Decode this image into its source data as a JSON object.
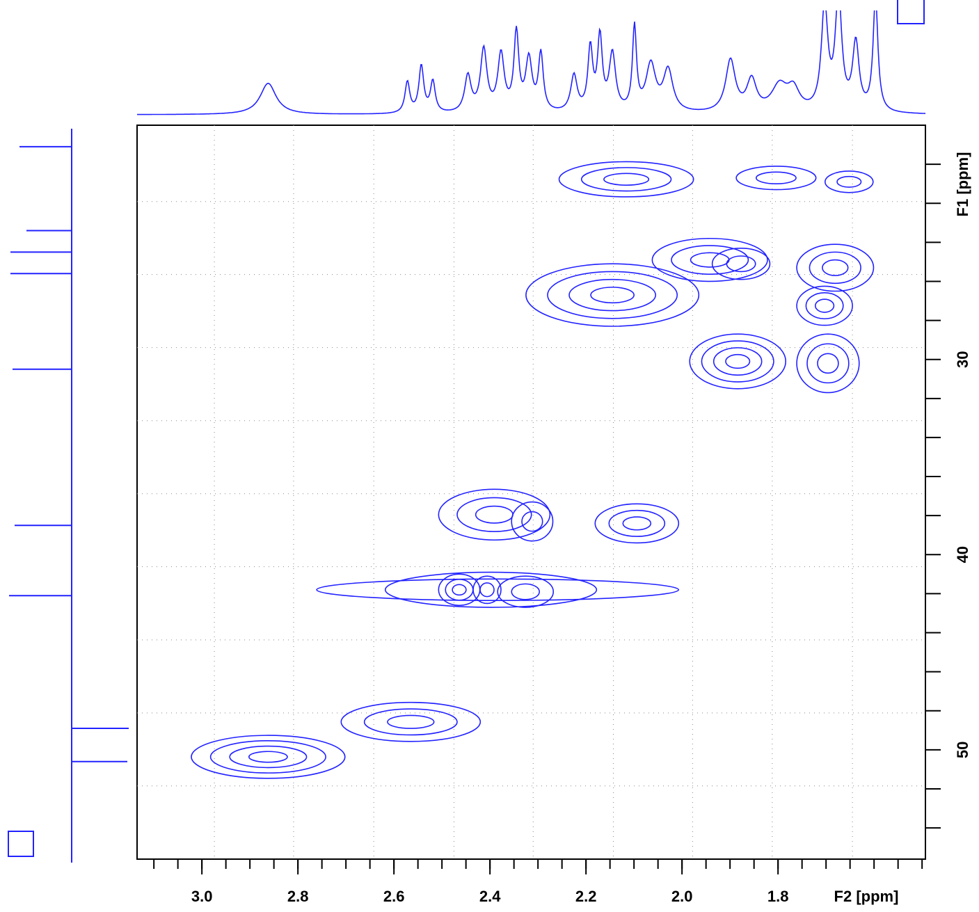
{
  "chart_data": {
    "type": "contour",
    "xlabel": "F2 [ppm]",
    "ylabel": "F1 [ppm]",
    "color": "#2222ff",
    "xlim": [
      3.135,
      1.493
    ],
    "ylim": [
      18,
      55.6
    ],
    "xticks": [
      {
        "value": 3,
        "label": "3.0"
      },
      2.8,
      2.6,
      2.4,
      2.2,
      {
        "value": 2,
        "label": "2.0"
      },
      1.8
    ],
    "xminorticks": [
      3.1,
      3.05,
      3.0,
      2.95,
      2.9,
      2.85,
      2.8,
      2.75,
      2.7,
      2.65,
      2.6,
      2.55,
      2.5,
      2.45,
      2.4,
      2.35,
      2.3,
      2.25,
      2.2,
      2.15,
      2.1,
      2.05,
      2.0,
      1.95,
      1.9,
      1.85,
      1.8,
      1.75,
      1.7,
      1.65,
      1.6,
      1.55,
      1.5
    ],
    "yticks": [
      30,
      40,
      50
    ],
    "yminorticks": [
      20,
      22,
      24,
      26,
      28,
      30,
      32,
      34,
      36,
      38,
      40,
      42,
      44,
      46,
      48,
      50,
      52,
      54
    ],
    "grid": {
      "x": [
        2.974,
        2.809,
        2.642,
        2.475,
        2.31,
        2.143,
        1.978,
        1.812,
        1.645
      ],
      "y": [
        21.91,
        25.65,
        29.39,
        33.14,
        36.88,
        40.62,
        44.37,
        48.11,
        51.85
      ]
    },
    "peaks": [
      {
        "x": 2.116,
        "y": 20.77,
        "sx": 0.14,
        "sy": 0.9,
        "levels": 3
      },
      {
        "x": 1.804,
        "y": 20.7,
        "sx": 0.083,
        "sy": 0.6,
        "levels": 2
      },
      {
        "x": 1.652,
        "y": 20.9,
        "sx": 0.05,
        "sy": 0.55,
        "levels": 2
      },
      {
        "x": 2.145,
        "y": 26.7,
        "sx": 0.18,
        "sy": 1.6,
        "levels": 4
      },
      {
        "x": 1.942,
        "y": 24.9,
        "sx": 0.12,
        "sy": 1.1,
        "levels": 3
      },
      {
        "x": 1.877,
        "y": 25.1,
        "sx": 0.06,
        "sy": 0.8,
        "levels": 2
      },
      {
        "x": 1.681,
        "y": 25.3,
        "sx": 0.08,
        "sy": 1.2,
        "levels": 3
      },
      {
        "x": 1.703,
        "y": 27.25,
        "sx": 0.058,
        "sy": 1.0,
        "levels": 3
      },
      {
        "x": 1.884,
        "y": 30.1,
        "sx": 0.1,
        "sy": 1.4,
        "levels": 4
      },
      {
        "x": 1.696,
        "y": 30.2,
        "sx": 0.065,
        "sy": 1.5,
        "levels": 3
      },
      {
        "x": 2.391,
        "y": 37.95,
        "sx": 0.116,
        "sy": 1.3,
        "levels": 3
      },
      {
        "x": 2.312,
        "y": 38.3,
        "sx": 0.043,
        "sy": 1.0,
        "levels": 2
      },
      {
        "x": 2.094,
        "y": 38.4,
        "sx": 0.087,
        "sy": 1.0,
        "levels": 3
      },
      {
        "x": 2.384,
        "y": 41.8,
        "sx": 0.377,
        "sy": 0.55,
        "levels": 1
      },
      {
        "x": 2.398,
        "y": 41.8,
        "sx": 0.22,
        "sy": 0.9,
        "levels": 1
      },
      {
        "x": 2.464,
        "y": 41.8,
        "sx": 0.043,
        "sy": 0.8,
        "levels": 3
      },
      {
        "x": 2.406,
        "y": 41.8,
        "sx": 0.029,
        "sy": 0.7,
        "levels": 2
      },
      {
        "x": 2.326,
        "y": 41.9,
        "sx": 0.058,
        "sy": 0.8,
        "levels": 2
      },
      {
        "x": 2.565,
        "y": 48.57,
        "sx": 0.145,
        "sy": 1.0,
        "levels": 3
      },
      {
        "x": 2.862,
        "y": 50.36,
        "sx": 0.16,
        "sy": 1.1,
        "levels": 4
      }
    ],
    "f2_projection": [
      {
        "x": 2.862,
        "h": 30,
        "w": 0.02
      },
      {
        "x": 2.572,
        "h": 30,
        "w": 0.006
      },
      {
        "x": 2.543,
        "h": 45,
        "w": 0.006
      },
      {
        "x": 2.519,
        "h": 30,
        "w": 0.006
      },
      {
        "x": 2.446,
        "h": 35,
        "w": 0.008
      },
      {
        "x": 2.413,
        "h": 60,
        "w": 0.008
      },
      {
        "x": 2.377,
        "h": 55,
        "w": 0.008
      },
      {
        "x": 2.345,
        "h": 75,
        "w": 0.006
      },
      {
        "x": 2.319,
        "h": 50,
        "w": 0.008
      },
      {
        "x": 2.294,
        "h": 55,
        "w": 0.006
      },
      {
        "x": 2.225,
        "h": 35,
        "w": 0.008
      },
      {
        "x": 2.191,
        "h": 60,
        "w": 0.006
      },
      {
        "x": 2.171,
        "h": 70,
        "w": 0.006
      },
      {
        "x": 2.145,
        "h": 55,
        "w": 0.008
      },
      {
        "x": 2.099,
        "h": 80,
        "w": 0.005
      },
      {
        "x": 2.065,
        "h": 45,
        "w": 0.012
      },
      {
        "x": 2.029,
        "h": 40,
        "w": 0.012
      },
      {
        "x": 1.899,
        "h": 50,
        "w": 0.012
      },
      {
        "x": 1.855,
        "h": 30,
        "w": 0.012
      },
      {
        "x": 1.797,
        "h": 25,
        "w": 0.02
      },
      {
        "x": 1.768,
        "h": 20,
        "w": 0.015
      },
      {
        "x": 1.703,
        "h": 100,
        "w": 0.008
      },
      {
        "x": 1.674,
        "h": 110,
        "w": 0.008
      },
      {
        "x": 1.638,
        "h": 65,
        "w": 0.008
      },
      {
        "x": 1.597,
        "h": 110,
        "w": 0.006
      }
    ],
    "f1_projection": [
      {
        "y": 19.1,
        "h": 75
      },
      {
        "y": 23.4,
        "h": 65
      },
      {
        "y": 24.5,
        "h": 88
      },
      {
        "y": 25.6,
        "h": 88
      },
      {
        "y": 30.5,
        "h": 85
      },
      {
        "y": 38.5,
        "h": 82
      },
      {
        "y": 42.1,
        "h": 90
      },
      {
        "y": 48.9,
        "h": -82
      },
      {
        "y": 50.6,
        "h": -80
      }
    ]
  }
}
